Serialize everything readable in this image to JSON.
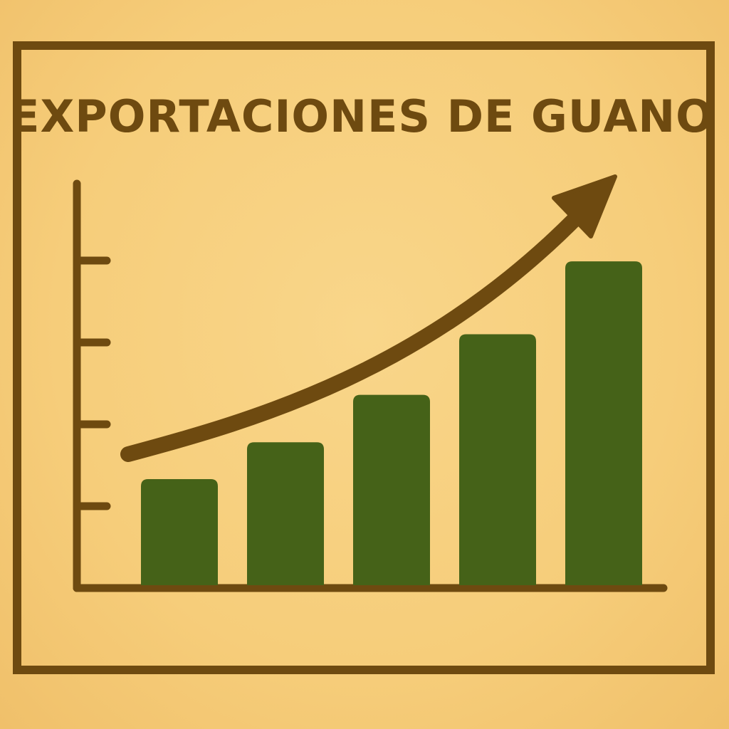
{
  "chart_data": {
    "type": "bar",
    "title": "EXPORTACIONES DE GUANO",
    "xlabel": "",
    "ylabel": "",
    "categories": [
      "",
      "",
      "",
      "",
      ""
    ],
    "values": [
      1.33,
      1.78,
      2.36,
      3.1,
      3.99
    ],
    "ylim": [
      0,
      4
    ],
    "y_ticks": [
      1,
      2,
      3,
      4
    ],
    "y_tick_labels_shown": false,
    "grid": false,
    "trend_arrow": "increasing",
    "colors": {
      "background": "#f6cd7a",
      "ink": "#6e4a10",
      "bar": "#456218"
    }
  }
}
